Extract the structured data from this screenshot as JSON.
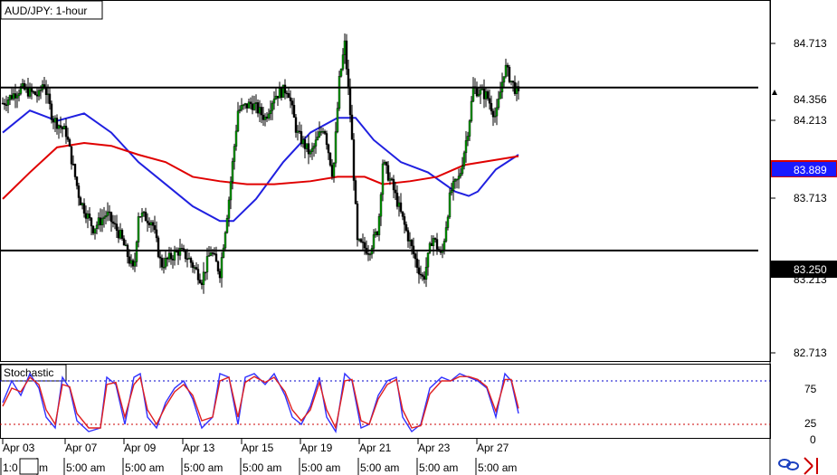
{
  "chart_title": "AUD/JPY: 1-hour",
  "price_labels": {
    "tick_1": "84.713",
    "tick_2": "84.213",
    "tick_3": "83.713",
    "tick_4": "82.713",
    "partial": "83.213",
    "resistance": "84.356",
    "current": "83.889",
    "support": "83.250"
  },
  "indicator": {
    "title": "Stochastic",
    "levels": [
      "75",
      "25",
      "0"
    ]
  },
  "time_axis": {
    "dates": [
      "Apr 03",
      "Apr 07",
      "Apr 09",
      "Apr 13",
      "Apr 15",
      "Apr 19",
      "Apr 21",
      "Apr 23",
      "Apr 27"
    ],
    "times": [
      "1:0",
      "m",
      "5:00 am",
      "5:00 am",
      "5:00 am",
      "5:00 am",
      "5:00 am",
      "5:00 am",
      "5:00 am",
      "5:00 am"
    ]
  },
  "colors": {
    "bull": "#00a000",
    "bear": "#000000",
    "ma_fast": "#2020e0",
    "ma_slow": "#e00000",
    "stoch_k": "#3030ff",
    "stoch_d": "#e02020",
    "level_line": "#000000"
  },
  "chart_data": [
    {
      "type": "candlestick",
      "title": "AUD/JPY: 1-hour",
      "ylim": [
        82.5,
        84.95
      ],
      "horizontal_levels": [
        84.356,
        83.25
      ],
      "current_price": 83.889,
      "grid": false,
      "anchors": [
        [
          0,
          84.25
        ],
        [
          20,
          84.35
        ],
        [
          40,
          84.3
        ],
        [
          45,
          84.4
        ],
        [
          55,
          84.15
        ],
        [
          70,
          84.05
        ],
        [
          85,
          83.6
        ],
        [
          100,
          83.4
        ],
        [
          115,
          83.5
        ],
        [
          130,
          83.35
        ],
        [
          145,
          83.1
        ],
        [
          150,
          83.5
        ],
        [
          165,
          83.45
        ],
        [
          175,
          83.15
        ],
        [
          195,
          83.25
        ],
        [
          205,
          83.2
        ],
        [
          220,
          83.05
        ],
        [
          230,
          83.25
        ],
        [
          240,
          83.1
        ],
        [
          250,
          83.6
        ],
        [
          260,
          84.2
        ],
        [
          275,
          84.25
        ],
        [
          290,
          84.15
        ],
        [
          300,
          84.3
        ],
        [
          315,
          84.35
        ],
        [
          325,
          84.05
        ],
        [
          340,
          83.9
        ],
        [
          355,
          84.1
        ],
        [
          365,
          83.75
        ],
        [
          372,
          84.4
        ],
        [
          378,
          84.65
        ],
        [
          385,
          84.1
        ],
        [
          392,
          83.3
        ],
        [
          405,
          83.25
        ],
        [
          415,
          83.4
        ],
        [
          420,
          83.85
        ],
        [
          430,
          83.7
        ],
        [
          445,
          83.4
        ],
        [
          458,
          83.15
        ],
        [
          465,
          83.05
        ],
        [
          475,
          83.35
        ],
        [
          485,
          83.2
        ],
        [
          495,
          83.65
        ],
        [
          505,
          83.75
        ],
        [
          515,
          84.1
        ],
        [
          520,
          84.35
        ],
        [
          535,
          84.3
        ],
        [
          545,
          84.15
        ],
        [
          555,
          84.5
        ],
        [
          562,
          84.4
        ],
        [
          570,
          84.3
        ]
      ],
      "moving_averages": [
        {
          "name": "",
          "color": "#2020e0",
          "values": [
            [
              0,
              84.05
            ],
            [
              30,
              84.2
            ],
            [
              60,
              84.13
            ],
            [
              90,
              84.18
            ],
            [
              120,
              84.05
            ],
            [
              150,
              83.85
            ],
            [
              180,
              83.7
            ],
            [
              210,
              83.55
            ],
            [
              240,
              83.45
            ],
            [
              255,
              83.45
            ],
            [
              280,
              83.6
            ],
            [
              310,
              83.85
            ],
            [
              340,
              84.05
            ],
            [
              370,
              84.15
            ],
            [
              390,
              84.15
            ],
            [
              410,
              84.0
            ],
            [
              440,
              83.85
            ],
            [
              470,
              83.78
            ],
            [
              500,
              83.65
            ],
            [
              515,
              83.62
            ],
            [
              525,
              83.65
            ],
            [
              545,
              83.8
            ],
            [
              570,
              83.9
            ]
          ]
        },
        {
          "name": "",
          "color": "#e00000",
          "values": [
            [
              0,
              83.6
            ],
            [
              30,
              83.78
            ],
            [
              60,
              83.95
            ],
            [
              90,
              83.98
            ],
            [
              120,
              83.96
            ],
            [
              150,
              83.9
            ],
            [
              180,
              83.85
            ],
            [
              210,
              83.75
            ],
            [
              240,
              83.72
            ],
            [
              270,
              83.7
            ],
            [
              300,
              83.7
            ],
            [
              340,
              83.72
            ],
            [
              370,
              83.75
            ],
            [
              400,
              83.75
            ],
            [
              420,
              83.7
            ],
            [
              450,
              83.72
            ],
            [
              480,
              83.75
            ],
            [
              510,
              83.83
            ],
            [
              540,
              83.86
            ],
            [
              570,
              83.89
            ]
          ]
        }
      ]
    },
    {
      "type": "line",
      "title": "Stochastic",
      "ylim": [
        0,
        100
      ],
      "levels": [
        80,
        20
      ],
      "series": [
        {
          "name": "",
          "values": [
            [
              0,
              50
            ],
            [
              10,
              80
            ],
            [
              20,
              60
            ],
            [
              30,
              90
            ],
            [
              40,
              70
            ],
            [
              48,
              30
            ],
            [
              58,
              15
            ],
            [
              66,
              85
            ],
            [
              74,
              70
            ],
            [
              82,
              25
            ],
            [
              95,
              10
            ],
            [
              108,
              15
            ],
            [
              115,
              85
            ],
            [
              125,
              75
            ],
            [
              135,
              20
            ],
            [
              145,
              85
            ],
            [
              152,
              90
            ],
            [
              160,
              30
            ],
            [
              170,
              15
            ],
            [
              180,
              50
            ],
            [
              190,
              70
            ],
            [
              200,
              80
            ],
            [
              210,
              55
            ],
            [
              220,
              15
            ],
            [
              232,
              30
            ],
            [
              240,
              90
            ],
            [
              250,
              85
            ],
            [
              260,
              20
            ],
            [
              268,
              85
            ],
            [
              278,
              90
            ],
            [
              290,
              75
            ],
            [
              300,
              90
            ],
            [
              312,
              60
            ],
            [
              320,
              30
            ],
            [
              330,
              20
            ],
            [
              340,
              45
            ],
            [
              350,
              85
            ],
            [
              358,
              30
            ],
            [
              368,
              10
            ],
            [
              378,
              90
            ],
            [
              386,
              80
            ],
            [
              396,
              15
            ],
            [
              405,
              20
            ],
            [
              415,
              60
            ],
            [
              425,
              80
            ],
            [
              435,
              85
            ],
            [
              442,
              30
            ],
            [
              452,
              10
            ],
            [
              462,
              20
            ],
            [
              472,
              70
            ],
            [
              485,
              85
            ],
            [
              495,
              80
            ],
            [
              505,
              90
            ],
            [
              515,
              85
            ],
            [
              525,
              80
            ],
            [
              535,
              70
            ],
            [
              545,
              30
            ],
            [
              555,
              90
            ],
            [
              562,
              80
            ],
            [
              570,
              35
            ]
          ]
        },
        {
          "name": "",
          "values": [
            [
              0,
              45
            ],
            [
              10,
              70
            ],
            [
              20,
              65
            ],
            [
              30,
              85
            ],
            [
              40,
              75
            ],
            [
              48,
              40
            ],
            [
              58,
              20
            ],
            [
              66,
              75
            ],
            [
              74,
              72
            ],
            [
              82,
              35
            ],
            [
              95,
              15
            ],
            [
              108,
              15
            ],
            [
              115,
              75
            ],
            [
              125,
              78
            ],
            [
              135,
              30
            ],
            [
              145,
              75
            ],
            [
              152,
              85
            ],
            [
              160,
              40
            ],
            [
              170,
              20
            ],
            [
              180,
              45
            ],
            [
              190,
              65
            ],
            [
              200,
              75
            ],
            [
              210,
              60
            ],
            [
              220,
              25
            ],
            [
              232,
              30
            ],
            [
              240,
              80
            ],
            [
              250,
              85
            ],
            [
              260,
              30
            ],
            [
              268,
              78
            ],
            [
              278,
              86
            ],
            [
              290,
              78
            ],
            [
              300,
              85
            ],
            [
              312,
              65
            ],
            [
              320,
              40
            ],
            [
              330,
              25
            ],
            [
              340,
              40
            ],
            [
              350,
              78
            ],
            [
              358,
              40
            ],
            [
              368,
              15
            ],
            [
              378,
              80
            ],
            [
              386,
              82
            ],
            [
              396,
              25
            ],
            [
              405,
              20
            ],
            [
              415,
              55
            ],
            [
              425,
              75
            ],
            [
              435,
              82
            ],
            [
              442,
              40
            ],
            [
              452,
              15
            ],
            [
              462,
              18
            ],
            [
              472,
              62
            ],
            [
              485,
              80
            ],
            [
              495,
              80
            ],
            [
              505,
              86
            ],
            [
              515,
              86
            ],
            [
              525,
              82
            ],
            [
              535,
              72
            ],
            [
              545,
              38
            ],
            [
              555,
              82
            ],
            [
              562,
              82
            ],
            [
              570,
              42
            ]
          ]
        }
      ]
    }
  ]
}
